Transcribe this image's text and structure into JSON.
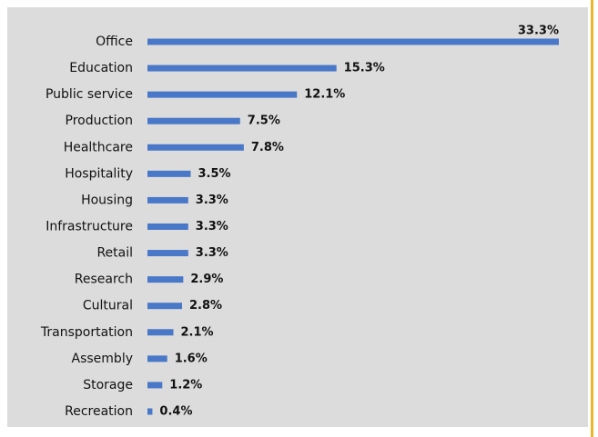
{
  "chart_data": {
    "type": "bar",
    "orientation": "horizontal",
    "color": "#4a78c8",
    "categories": [
      "Office",
      "Education",
      "Public service",
      "Production",
      "Healthcare",
      "Hospitality",
      "Housing",
      "Infrastructure",
      "Retail",
      "Research",
      "Cultural",
      "Transportation",
      "Assembly",
      "Storage",
      "Recreation"
    ],
    "values": [
      33.3,
      15.3,
      12.1,
      7.5,
      7.8,
      3.5,
      3.3,
      3.3,
      3.3,
      2.9,
      2.8,
      2.1,
      1.6,
      1.2,
      0.4
    ],
    "value_labels": [
      "33.3%",
      "15.3%",
      "12.1%",
      "7.5%",
      "7.8%",
      "3.5%",
      "3.3%",
      "3.3%",
      "3.3%",
      "2.9%",
      "2.8%",
      "2.1%",
      "1.6%",
      "1.2%",
      "0.4%"
    ]
  }
}
